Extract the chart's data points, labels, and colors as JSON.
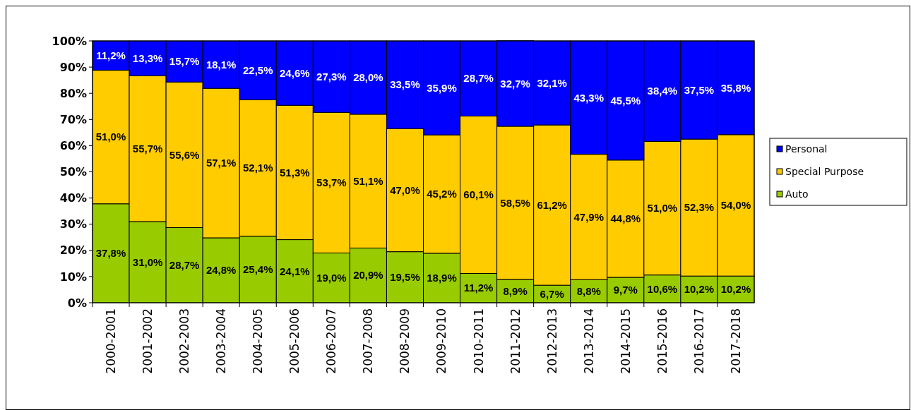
{
  "chart_data": {
    "type": "bar",
    "stacked": true,
    "legend": "right",
    "grid": false,
    "categories": [
      "2000-2001",
      "2001-2002",
      "2002-2003",
      "2003-2004",
      "2004-2005",
      "2005-2006",
      "2006-2007",
      "2007-2008",
      "2008-2009",
      "2009-2010",
      "2010-2011",
      "2011-2012",
      "2012-2013",
      "2013-2014",
      "2014-2015",
      "2015-2016",
      "2016-2017",
      "2017-2018"
    ],
    "ylim": [
      0,
      100
    ],
    "yticks": [
      {
        "value": 0,
        "label": "0%"
      },
      {
        "value": 10,
        "label": "10%"
      },
      {
        "value": 20,
        "label": "20%"
      },
      {
        "value": 30,
        "label": "30%"
      },
      {
        "value": 40,
        "label": "40%"
      },
      {
        "value": 50,
        "label": "50%"
      },
      {
        "value": 60,
        "label": "60%"
      },
      {
        "value": 70,
        "label": "70%"
      },
      {
        "value": 80,
        "label": "80%"
      },
      {
        "value": 90,
        "label": "90%"
      },
      {
        "value": 100,
        "label": "100%"
      }
    ],
    "series": [
      {
        "name": "Auto",
        "color": "#99cc00",
        "values": [
          37.8,
          31.0,
          28.7,
          24.8,
          25.4,
          24.1,
          19.0,
          20.9,
          19.5,
          18.9,
          11.2,
          8.9,
          6.7,
          8.8,
          9.7,
          10.6,
          10.2,
          10.2
        ],
        "value_labels": [
          "37,8%",
          "31,0%",
          "28,7%",
          "24,8%",
          "25,4%",
          "24,1%",
          "19,0%",
          "20,9%",
          "19,5%",
          "18,9%",
          "11,2%",
          "8,9%",
          "6,7%",
          "8,8%",
          "9,7%",
          "10,6%",
          "10,2%",
          "10,2%"
        ]
      },
      {
        "name": "Special Purpose",
        "color": "#ffcc00",
        "values": [
          51.0,
          55.7,
          55.6,
          57.1,
          52.1,
          51.3,
          53.7,
          51.1,
          47.0,
          45.2,
          60.1,
          58.5,
          61.2,
          47.9,
          44.8,
          51.0,
          52.3,
          54.0
        ],
        "value_labels": [
          "51,0%",
          "55,7%",
          "55,6%",
          "57,1%",
          "52,1%",
          "51,3%",
          "53,7%",
          "51,1%",
          "47,0%",
          "45,2%",
          "60,1%",
          "58,5%",
          "61,2%",
          "47,9%",
          "44,8%",
          "51,0%",
          "52,3%",
          "54,0%"
        ]
      },
      {
        "name": "Personal",
        "color": "#0000ff",
        "values": [
          11.2,
          13.3,
          15.7,
          18.1,
          22.5,
          24.6,
          27.3,
          28.0,
          33.5,
          35.9,
          28.7,
          32.7,
          32.1,
          43.3,
          45.5,
          38.4,
          37.5,
          35.8
        ],
        "value_labels": [
          "11,2%",
          "13,3%",
          "15,7%",
          "18,1%",
          "22,5%",
          "24,6%",
          "27,3%",
          "28,0%",
          "33,5%",
          "35,9%",
          "28,7%",
          "32,7%",
          "32,1%",
          "43,3%",
          "45,5%",
          "38,4%",
          "37,5%",
          "35,8%"
        ]
      }
    ]
  }
}
